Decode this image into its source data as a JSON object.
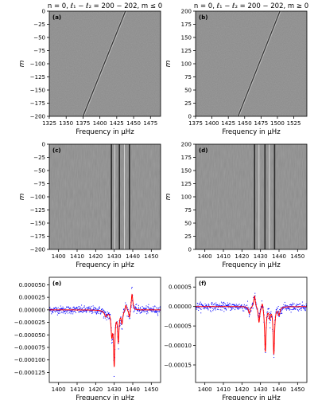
{
  "figure": {
    "panels": [
      {
        "id": "a",
        "label": "(a)",
        "title": "n = 0, ℓ₁ − ℓ₂ = 200 − 202, m ≤ 0",
        "kind": "image",
        "xlabel": "Frequency in μHz",
        "ylabel": "m",
        "xlim": [
          1325,
          1490
        ],
        "ylim": [
          -200,
          0
        ],
        "xticks": [
          "1325",
          "1350",
          "1375",
          "1400",
          "1425",
          "1450",
          "1475"
        ],
        "xtick_values": [
          1325,
          1350,
          1375,
          1400,
          1425,
          1450,
          1475
        ],
        "yticks": [
          "0",
          "−25",
          "−50",
          "−75",
          "−100",
          "−125",
          "−150",
          "−175",
          "−200"
        ],
        "ytick_values": [
          0,
          -25,
          -50,
          -75,
          -100,
          -125,
          -150,
          -175,
          -200
        ],
        "ridge": {
          "m_start": -200,
          "m_end": 0,
          "freq_start": 1375,
          "freq_end": 1438
        }
      },
      {
        "id": "b",
        "label": "(b)",
        "title": "n = 0, ℓ₁ − ℓ₂ = 200 − 202, m ≥ 0",
        "kind": "image",
        "xlabel": "Frequency in μHz",
        "ylabel": "m",
        "xlim": [
          1375,
          1545
        ],
        "ylim": [
          0,
          200
        ],
        "xticks": [
          "1375",
          "1400",
          "1425",
          "1450",
          "1475",
          "1500",
          "1525"
        ],
        "xtick_values": [
          1375,
          1400,
          1425,
          1450,
          1475,
          1500,
          1525
        ],
        "yticks": [
          "200",
          "175",
          "150",
          "125",
          "100",
          "75",
          "50",
          "25",
          "0"
        ],
        "ytick_values": [
          200,
          175,
          150,
          125,
          100,
          75,
          50,
          25,
          0
        ],
        "ridge": {
          "m_start": 0,
          "m_end": 200,
          "freq_start": 1440,
          "freq_end": 1504
        }
      },
      {
        "id": "c",
        "label": "(c)",
        "kind": "image",
        "xlabel": "Frequency in μHz",
        "ylabel": "m",
        "xlim": [
          1395,
          1455
        ],
        "ylim": [
          -200,
          0
        ],
        "xticks": [
          "1400",
          "1410",
          "1420",
          "1430",
          "1440",
          "1450"
        ],
        "xtick_values": [
          1400,
          1410,
          1420,
          1430,
          1440,
          1450
        ],
        "yticks": [
          "0",
          "−25",
          "−50",
          "−75",
          "−100",
          "−125",
          "−150",
          "−175",
          "−200"
        ],
        "ytick_values": [
          0,
          -25,
          -50,
          -75,
          -100,
          -125,
          -150,
          -175,
          -200
        ],
        "lines": [
          1428.5,
          1430.3,
          1432.8,
          1435.5,
          1438.2
        ]
      },
      {
        "id": "d",
        "label": "(d)",
        "kind": "image",
        "xlabel": "Frequency in μHz",
        "ylabel": "m",
        "xlim": [
          1395,
          1455
        ],
        "ylim": [
          0,
          200
        ],
        "xticks": [
          "1400",
          "1410",
          "1420",
          "1430",
          "1440",
          "1450"
        ],
        "xtick_values": [
          1400,
          1410,
          1420,
          1430,
          1440,
          1450
        ],
        "yticks": [
          "200",
          "175",
          "150",
          "125",
          "100",
          "75",
          "50",
          "25",
          "0"
        ],
        "ytick_values": [
          200,
          175,
          150,
          125,
          100,
          75,
          50,
          25,
          0
        ],
        "lines": [
          1426.8,
          1429.2,
          1432.4,
          1434.8,
          1437.6
        ]
      },
      {
        "id": "e",
        "label": "(e)",
        "kind": "line",
        "xlabel": "Frequency in μHz",
        "xlim": [
          1395,
          1455
        ],
        "ylim": [
          -0.000145,
          6.5e-05
        ],
        "xticks": [
          "1400",
          "1410",
          "1420",
          "1430",
          "1440",
          "1450"
        ],
        "xtick_values": [
          1400,
          1410,
          1420,
          1430,
          1440,
          1450
        ],
        "yticks": [
          "0.000050",
          "0.000025",
          "0.000000",
          "−0.000025",
          "−0.000050",
          "−0.000075",
          "−0.000100",
          "−0.000125"
        ],
        "ytick_values": [
          5e-05,
          2.5e-05,
          0,
          -2.5e-05,
          -5e-05,
          -7.5e-05,
          -0.0001,
          -0.000125
        ],
        "peaks": [
          {
            "f": 1425.5,
            "a": -1.2e-05,
            "w": 0.9
          },
          {
            "f": 1428.7,
            "a": -4.5e-05,
            "w": 0.5
          },
          {
            "f": 1430.0,
            "a": -0.000105,
            "w": 0.42
          },
          {
            "f": 1432.2,
            "a": -6e-05,
            "w": 0.45
          },
          {
            "f": 1434.2,
            "a": -2.5e-05,
            "w": 0.5
          },
          {
            "f": 1436.3,
            "a": 1.2e-05,
            "w": 0.5
          },
          {
            "f": 1438.2,
            "a": -1.8e-05,
            "w": 0.45
          },
          {
            "f": 1439.6,
            "a": 3.3e-05,
            "w": 0.5
          }
        ]
      },
      {
        "id": "f",
        "label": "(f)",
        "kind": "line",
        "xlabel": "Frequency in μHz",
        "xlim": [
          1395,
          1455
        ],
        "ylim": [
          -0.000195,
          7.5e-05
        ],
        "xticks": [
          "1400",
          "1410",
          "1420",
          "1430",
          "1440",
          "1450"
        ],
        "xtick_values": [
          1400,
          1410,
          1420,
          1430,
          1440,
          1450
        ],
        "yticks": [
          "0.00005",
          "0.00000",
          "−0.00005",
          "−0.00010",
          "−0.00015"
        ],
        "ytick_values": [
          5e-05,
          0,
          -5e-05,
          -0.0001,
          -0.00015
        ],
        "peaks": [
          {
            "f": 1424.0,
            "a": -1.8e-05,
            "w": 0.55
          },
          {
            "f": 1426.8,
            "a": 3e-05,
            "w": 0.5
          },
          {
            "f": 1429.2,
            "a": -4e-05,
            "w": 0.5
          },
          {
            "f": 1431.0,
            "a": 1.8e-05,
            "w": 0.5
          },
          {
            "f": 1432.6,
            "a": -0.000115,
            "w": 0.45
          },
          {
            "f": 1435.0,
            "a": -2.5e-05,
            "w": 0.45
          },
          {
            "f": 1437.2,
            "a": -0.00012,
            "w": 0.45
          },
          {
            "f": 1440.0,
            "a": -2e-05,
            "w": 0.55
          }
        ]
      }
    ]
  },
  "chart_data": [
    {
      "panel": "(a)",
      "type": "heatmap",
      "title": "n = 0, ℓ₁ − ℓ₂ = 200 − 202, m ≤ 0",
      "xlabel": "Frequency in μHz",
      "ylabel": "m",
      "xlim": [
        1325,
        1490
      ],
      "ylim": [
        -200,
        0
      ]
    },
    {
      "panel": "(b)",
      "type": "heatmap",
      "title": "n = 0, ℓ₁ − ℓ₂ = 200 − 202, m ≥ 0",
      "xlabel": "Frequency in μHz",
      "ylabel": "m",
      "xlim": [
        1375,
        1545
      ],
      "ylim": [
        0,
        200
      ]
    },
    {
      "panel": "(c)",
      "type": "heatmap",
      "xlabel": "Frequency in μHz",
      "ylabel": "m",
      "xlim": [
        1395,
        1455
      ],
      "ylim": [
        -200,
        0
      ]
    },
    {
      "panel": "(d)",
      "type": "heatmap",
      "xlabel": "Frequency in μHz",
      "ylabel": "m",
      "xlim": [
        1395,
        1455
      ],
      "ylim": [
        0,
        200
      ]
    },
    {
      "panel": "(e)",
      "type": "line",
      "xlabel": "Frequency in μHz",
      "xlim": [
        1395,
        1455
      ],
      "ylim": [
        -0.000145,
        6.5e-05
      ],
      "series": [
        {
          "name": "",
          "color": "#ff0000",
          "x": [
            1400,
            1420,
            1425.5,
            1428.7,
            1430,
            1432.2,
            1434.2,
            1436.3,
            1438.2,
            1439.6,
            1450
          ],
          "y": [
            0,
            0,
            -1.2e-05,
            -4.5e-05,
            -0.000105,
            -6e-05,
            -2.5e-05,
            1.2e-05,
            -1.8e-05,
            3.3e-05,
            0
          ]
        }
      ]
    },
    {
      "panel": "(f)",
      "type": "line",
      "xlabel": "Frequency in μHz",
      "xlim": [
        1395,
        1455
      ],
      "ylim": [
        -0.000195,
        7.5e-05
      ],
      "series": [
        {
          "name": "",
          "color": "#ff0000",
          "x": [
            1400,
            1420,
            1424,
            1426.8,
            1429.2,
            1431,
            1432.6,
            1435,
            1437.2,
            1440,
            1450
          ],
          "y": [
            0,
            0,
            -1.8e-05,
            3e-05,
            -4e-05,
            1.8e-05,
            -0.000115,
            -2.5e-05,
            -0.00012,
            -2e-05,
            0
          ]
        }
      ]
    }
  ],
  "colors": {
    "data_points": "#0000ff",
    "fit_line": "#ff0000",
    "background_gray": "#8a8a8a",
    "axes": "#000000"
  }
}
